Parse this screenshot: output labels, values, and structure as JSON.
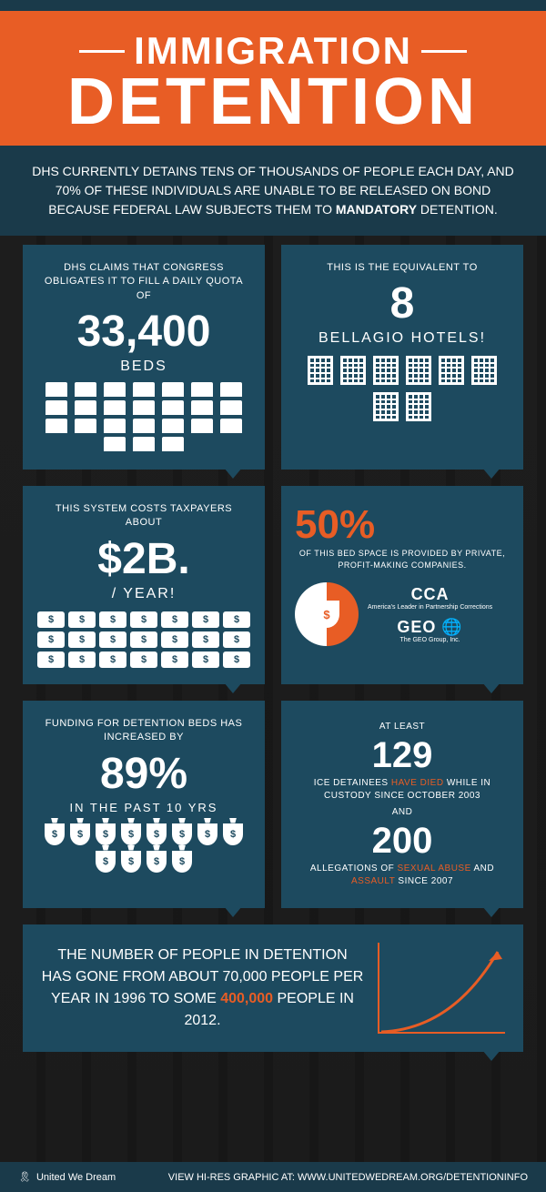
{
  "header": {
    "title_line1": "IMMIGRATION",
    "title_line2": "DETENTION"
  },
  "intro": {
    "text_pre": "DHS CURRENTLY DETAINS TENS OF THOUSANDS OF PEOPLE EACH DAY, AND 70% OF THESE INDIVIDUALS ARE UNABLE TO BE RELEASED ON BOND BECAUSE FEDERAL LAW SUBJECTS THEM TO ",
    "highlight": "MANDATORY",
    "text_post": " DETENTION."
  },
  "cards": {
    "beds": {
      "label": "DHS CLAIMS THAT CONGRESS OBLIGATES IT TO FILL A DAILY QUOTA OF",
      "value": "33,400",
      "unit": "BEDS",
      "icon_count": 24,
      "icon_per_row": 8
    },
    "hotels": {
      "label_pre": "THIS IS THE EQUIVALENT TO",
      "value": "8",
      "label_post": "BELLAGIO HOTELS!",
      "icon_count": 8
    },
    "cost": {
      "label": "THIS SYSTEM COSTS TAXPAYERS ABOUT",
      "value": "$2B.",
      "unit": "/ YEAR!",
      "icon_count": 21,
      "icon_per_row": 7
    },
    "private": {
      "pct": "50%",
      "label": "OF THIS BED SPACE IS PROVIDED BY PRIVATE, PROFIT-MAKING COMPANIES.",
      "pie_split": 50,
      "logo1": "CCA",
      "logo1_sub": "America's Leader in Partnership Corrections",
      "logo2": "GEO",
      "logo2_sub": "The GEO Group, Inc."
    },
    "funding": {
      "label": "FUNDING FOR DETENTION BEDS HAS INCREASED BY",
      "value": "89%",
      "unit": "IN THE PAST 10 YRS",
      "icon_count": 12
    },
    "deaths": {
      "label1_pre": "AT LEAST",
      "value1": "129",
      "label1_mid_pre": "ICE DETAINEES ",
      "label1_mid_hi": "HAVE DIED",
      "label1_mid_post": " WHILE IN CUSTODY SINCE OCTOBER 2003",
      "and": "AND",
      "value2": "200",
      "label2_pre": "ALLEGATIONS OF ",
      "label2_hi1": "SEXUAL ABUSE",
      "label2_mid": " AND ",
      "label2_hi2": "ASSAULT",
      "label2_post": " SINCE 2007"
    },
    "growth": {
      "text_pre": "THE NUMBER OF PEOPLE IN DETENTION HAS GONE FROM ABOUT 70,000 PEOPLE PER YEAR IN 1996 TO SOME ",
      "text_hi": "400,000",
      "text_post": " PEOPLE IN 2012."
    }
  },
  "footer": {
    "brand": "United We Dream",
    "link_pre": "VIEW HI-RES GRAPHIC AT: ",
    "link": "WWW.UNITEDWEDREAM.ORG/DETENTIONINFO"
  },
  "colors": {
    "orange": "#e85d25",
    "card_bg": "#1d4a5f",
    "dark": "#1a3a4a",
    "white": "#ffffff"
  }
}
